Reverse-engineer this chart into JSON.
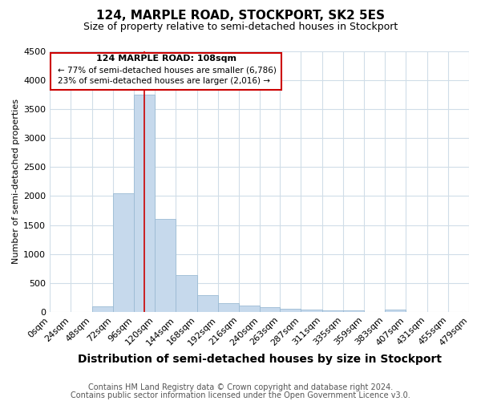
{
  "title": "124, MARPLE ROAD, STOCKPORT, SK2 5ES",
  "subtitle": "Size of property relative to semi-detached houses in Stockport",
  "xlabel": "Distribution of semi-detached houses by size in Stockport",
  "ylabel": "Number of semi-detached properties",
  "footnote1": "Contains HM Land Registry data © Crown copyright and database right 2024.",
  "footnote2": "Contains public sector information licensed under the Open Government Licence v3.0.",
  "annotation_line1": "124 MARPLE ROAD: 108sqm",
  "annotation_line2": "← 77% of semi-detached houses are smaller (6,786)",
  "annotation_line3": "23% of semi-detached houses are larger (2,016) →",
  "property_size": 108,
  "bin_edges": [
    0,
    24,
    48,
    72,
    96,
    120,
    144,
    168,
    192,
    216,
    240,
    263,
    287,
    311,
    335,
    359,
    383,
    407,
    431,
    455,
    479
  ],
  "bar_heights": [
    0,
    0,
    100,
    2050,
    3750,
    1600,
    640,
    290,
    155,
    110,
    80,
    55,
    40,
    30,
    20,
    0,
    40,
    0,
    0,
    0
  ],
  "bar_color": "#c6d9ec",
  "bar_edge_color": "#9bbbd4",
  "ylim": [
    0,
    4500
  ],
  "yticks": [
    0,
    500,
    1000,
    1500,
    2000,
    2500,
    3000,
    3500,
    4000,
    4500
  ],
  "bg_color": "#ffffff",
  "grid_color": "#d0dde8",
  "annotation_box_color": "#cc0000",
  "vline_color": "#cc0000",
  "title_fontsize": 11,
  "subtitle_fontsize": 9,
  "xlabel_fontsize": 10,
  "ylabel_fontsize": 8,
  "tick_fontsize": 8,
  "footnote_fontsize": 7,
  "ann_text_fontsize": 8
}
